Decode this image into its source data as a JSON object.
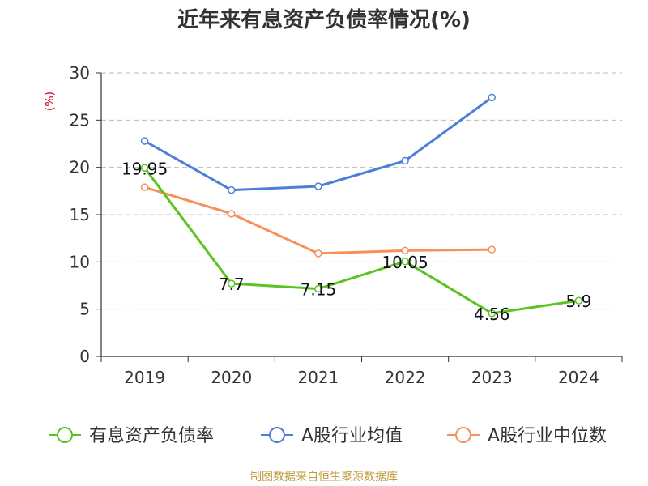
{
  "chart_data": {
    "type": "line",
    "title": "近年来有息资产负债率情况(%)",
    "ylabel": "(%)",
    "categories": [
      "2019",
      "2020",
      "2021",
      "2022",
      "2023",
      "2024"
    ],
    "ylim": [
      0,
      30
    ],
    "yticks": [
      0,
      5,
      10,
      15,
      20,
      25,
      30
    ],
    "grid": true,
    "legend_position": "bottom",
    "series": [
      {
        "name": "有息资产负债率",
        "color": "#5ac323",
        "values": [
          19.95,
          7.7,
          7.15,
          10.05,
          4.56,
          5.9
        ],
        "labels": [
          "19.95",
          "7.7",
          "7.15",
          "10.05",
          "4.56",
          "5.9"
        ]
      },
      {
        "name": "A股行业均值",
        "color": "#4e7fd8",
        "values": [
          22.8,
          17.6,
          18.0,
          20.7,
          27.4,
          null
        ]
      },
      {
        "name": "A股行业中位数",
        "color": "#f7905a",
        "values": [
          17.9,
          15.1,
          10.9,
          11.2,
          11.3,
          null
        ]
      }
    ]
  },
  "source": "制图数据来自恒生聚源数据库"
}
